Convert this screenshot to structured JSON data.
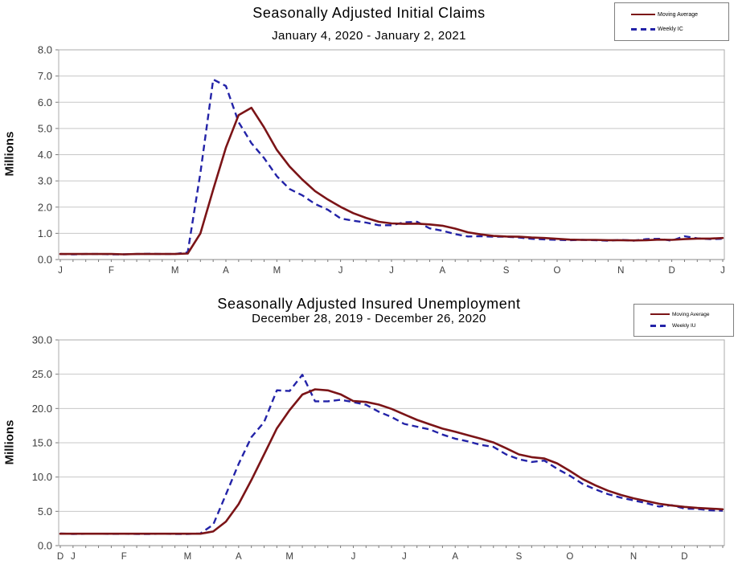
{
  "page": {
    "background": "#ffffff"
  },
  "chart_data": [
    {
      "type": "line",
      "title": "Seasonally Adjusted Initial Claims",
      "subtitle": "January 4, 2020 - January 2, 2021",
      "ylabel": "Millions",
      "ylim": [
        0,
        8
      ],
      "ytick_step": 1,
      "ytick_labels": [
        "0.0",
        "1.0",
        "2.0",
        "3.0",
        "4.0",
        "5.0",
        "6.0",
        "7.0",
        "8.0"
      ],
      "grid": true,
      "legend_position": "top-right",
      "x_unit": "weeks",
      "month_labels": [
        {
          "week": 0,
          "label": "J"
        },
        {
          "week": 4,
          "label": "F"
        },
        {
          "week": 9,
          "label": "M"
        },
        {
          "week": 13,
          "label": "A"
        },
        {
          "week": 17,
          "label": "M"
        },
        {
          "week": 22,
          "label": "J"
        },
        {
          "week": 26,
          "label": "J"
        },
        {
          "week": 30,
          "label": "A"
        },
        {
          "week": 35,
          "label": "S"
        },
        {
          "week": 39,
          "label": "O"
        },
        {
          "week": 44,
          "label": "N"
        },
        {
          "week": 48,
          "label": "D"
        },
        {
          "week": 52,
          "label": "J"
        }
      ],
      "series": [
        {
          "name": "Moving Average",
          "style": "solid",
          "color": "#7B1417",
          "values": [
            0.21,
            0.21,
            0.21,
            0.21,
            0.21,
            0.2,
            0.21,
            0.21,
            0.21,
            0.21,
            0.23,
            1.0,
            2.67,
            4.27,
            5.51,
            5.79,
            5.04,
            4.18,
            3.55,
            3.05,
            2.61,
            2.29,
            2.01,
            1.77,
            1.59,
            1.44,
            1.38,
            1.36,
            1.37,
            1.34,
            1.29,
            1.18,
            1.04,
            0.96,
            0.9,
            0.88,
            0.87,
            0.84,
            0.82,
            0.79,
            0.76,
            0.75,
            0.75,
            0.74,
            0.74,
            0.73,
            0.74,
            0.76,
            0.75,
            0.78,
            0.8,
            0.8,
            0.82
          ]
        },
        {
          "name": "Weekly IC",
          "style": "dashed",
          "color": "#2323A8",
          "values": [
            0.21,
            0.2,
            0.21,
            0.21,
            0.2,
            0.2,
            0.21,
            0.22,
            0.21,
            0.21,
            0.28,
            3.31,
            6.87,
            6.62,
            5.24,
            4.44,
            3.87,
            3.18,
            2.69,
            2.45,
            2.12,
            1.9,
            1.57,
            1.48,
            1.41,
            1.31,
            1.31,
            1.42,
            1.44,
            1.19,
            1.1,
            0.97,
            0.88,
            0.89,
            0.87,
            0.87,
            0.84,
            0.79,
            0.77,
            0.75,
            0.74,
            0.75,
            0.74,
            0.72,
            0.75,
            0.72,
            0.78,
            0.79,
            0.72,
            0.89,
            0.81,
            0.78,
            0.79
          ]
        }
      ]
    },
    {
      "type": "line",
      "title": "Seasonally Adjusted Insured Unemployment",
      "subtitle": "December 28, 2019 - December 26, 2020",
      "ylabel": "Millions",
      "ylim": [
        0,
        30
      ],
      "ytick_step": 5,
      "ytick_labels": [
        "0.0",
        "5.0",
        "10.0",
        "15.0",
        "20.0",
        "25.0",
        "30.0"
      ],
      "grid": true,
      "legend_position": "top-right",
      "x_unit": "weeks",
      "month_labels": [
        {
          "week": 0,
          "label": "D"
        },
        {
          "week": 1,
          "label": "J"
        },
        {
          "week": 5,
          "label": "F"
        },
        {
          "week": 10,
          "label": "M"
        },
        {
          "week": 14,
          "label": "A"
        },
        {
          "week": 18,
          "label": "M"
        },
        {
          "week": 23,
          "label": "J"
        },
        {
          "week": 27,
          "label": "J"
        },
        {
          "week": 31,
          "label": "A"
        },
        {
          "week": 36,
          "label": "S"
        },
        {
          "week": 40,
          "label": "O"
        },
        {
          "week": 45,
          "label": "N"
        },
        {
          "week": 49,
          "label": "D"
        }
      ],
      "series": [
        {
          "name": "Moving Average",
          "style": "solid",
          "color": "#7B1417",
          "values": [
            1.73,
            1.73,
            1.73,
            1.73,
            1.73,
            1.73,
            1.73,
            1.73,
            1.73,
            1.73,
            1.73,
            1.73,
            2.06,
            3.5,
            6.05,
            9.56,
            13.3,
            17.1,
            19.76,
            22.03,
            22.79,
            22.64,
            22.07,
            21.08,
            20.95,
            20.57,
            19.94,
            19.14,
            18.34,
            17.7,
            17.06,
            16.6,
            16.1,
            15.6,
            15.05,
            14.2,
            13.3,
            12.9,
            12.7,
            12.0,
            10.9,
            9.7,
            8.8,
            8.0,
            7.4,
            6.9,
            6.5,
            6.1,
            5.85,
            5.65,
            5.5,
            5.4,
            5.3
          ]
        },
        {
          "name": "Weekly IU",
          "style": "dashed",
          "color": "#2323A8",
          "values": [
            1.76,
            1.7,
            1.72,
            1.74,
            1.7,
            1.72,
            1.7,
            1.7,
            1.73,
            1.7,
            1.7,
            1.77,
            3.06,
            7.45,
            11.91,
            15.82,
            18.01,
            22.65,
            22.55,
            24.91,
            21.05,
            21.05,
            21.27,
            20.93,
            20.54,
            19.52,
            18.76,
            17.75,
            17.34,
            16.95,
            16.2,
            15.6,
            15.2,
            14.7,
            14.4,
            13.3,
            12.6,
            12.2,
            12.4,
            11.2,
            10.2,
            9.0,
            8.2,
            7.5,
            7.0,
            6.6,
            6.2,
            5.7,
            5.9,
            5.4,
            5.35,
            5.15,
            5.1
          ]
        }
      ]
    }
  ]
}
